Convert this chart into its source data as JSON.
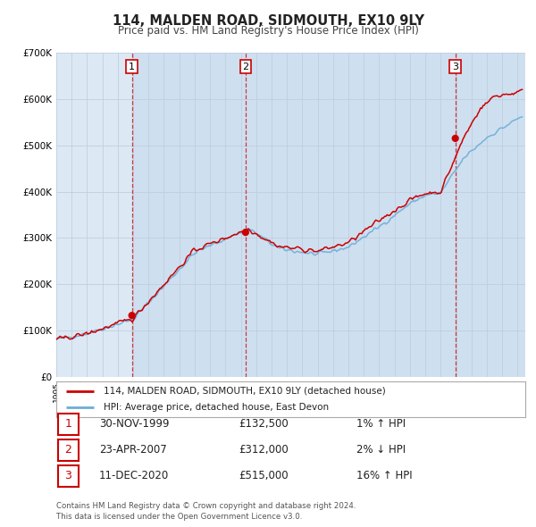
{
  "title": "114, MALDEN ROAD, SIDMOUTH, EX10 9LY",
  "subtitle": "Price paid vs. HM Land Registry's House Price Index (HPI)",
  "ylim": [
    0,
    700000
  ],
  "yticks": [
    0,
    100000,
    200000,
    300000,
    400000,
    500000,
    600000,
    700000
  ],
  "ytick_labels": [
    "£0",
    "£100K",
    "£200K",
    "£300K",
    "£400K",
    "£500K",
    "£600K",
    "£700K"
  ],
  "hpi_color": "#6baed6",
  "price_color": "#cc0000",
  "sale_marker_color": "#cc0000",
  "plot_bg_color": "#dce9f5",
  "shade_color": "#c5d9ee",
  "grid_color": "#b0c4d8",
  "legend_line_hpi": "#6baed6",
  "legend_label_price": "114, MALDEN ROAD, SIDMOUTH, EX10 9LY (detached house)",
  "legend_label_hpi": "HPI: Average price, detached house, East Devon",
  "sales": [
    {
      "num": 1,
      "date_str": "30-NOV-1999",
      "price": 132500,
      "hpi_diff": "1% ↑ HPI",
      "year": 1999.917
    },
    {
      "num": 2,
      "date_str": "23-APR-2007",
      "price": 312000,
      "hpi_diff": "2% ↓ HPI",
      "year": 2007.31
    },
    {
      "num": 3,
      "date_str": "11-DEC-2020",
      "price": 515000,
      "hpi_diff": "16% ↑ HPI",
      "year": 2020.95
    }
  ],
  "footer": "Contains HM Land Registry data © Crown copyright and database right 2024.\nThis data is licensed under the Open Government Licence v3.0.",
  "xmin": 1995.0,
  "xmax": 2025.5
}
